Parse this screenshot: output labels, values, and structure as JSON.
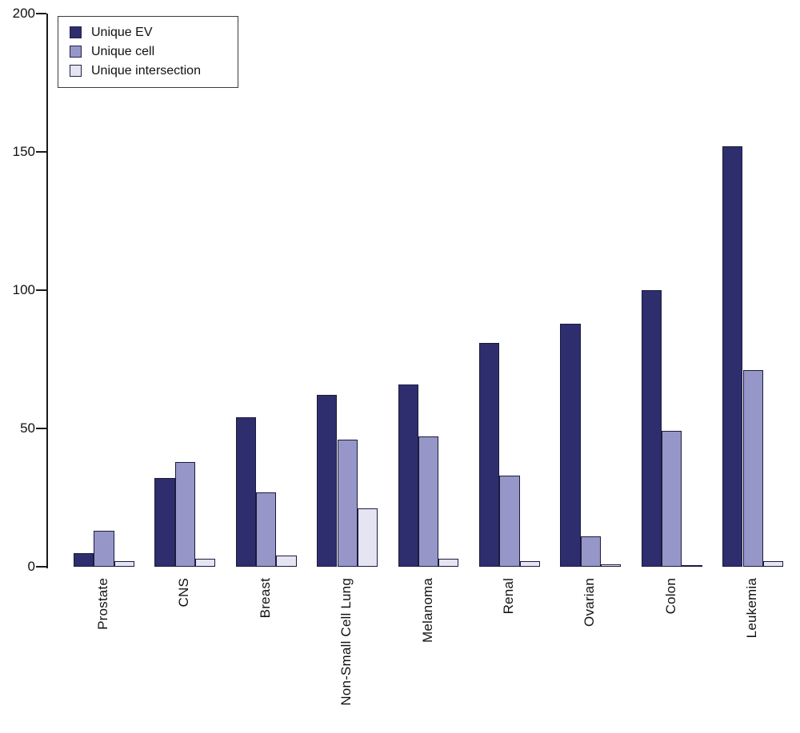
{
  "chart_data": {
    "type": "bar",
    "title": "",
    "xlabel": "",
    "ylabel": "",
    "categories": [
      "Prostate",
      "CNS",
      "Breast",
      "Non-Small Cell Lung",
      "Melanoma",
      "Renal",
      "Ovarian",
      "Colon",
      "Leukemia"
    ],
    "series": [
      {
        "name": "Unique EV",
        "color": "#2e2e6e",
        "values": [
          5,
          32,
          54,
          62,
          66,
          81,
          88,
          100,
          152
        ]
      },
      {
        "name": "Unique cell",
        "color": "#9697c8",
        "values": [
          13,
          38,
          27,
          46,
          47,
          33,
          11,
          49,
          71
        ]
      },
      {
        "name": "Unique intersection",
        "color": "#e4e4f2",
        "values": [
          2,
          3,
          4,
          21,
          3,
          2,
          1,
          0,
          2
        ]
      }
    ],
    "ylim": [
      0,
      200
    ],
    "yticks": [
      "0",
      "50",
      "100",
      "150",
      "200"
    ],
    "grid": false,
    "legend_position": "top-left",
    "bar_border_color": "#1b1b3d",
    "axis_color": "#1a1a1a"
  }
}
